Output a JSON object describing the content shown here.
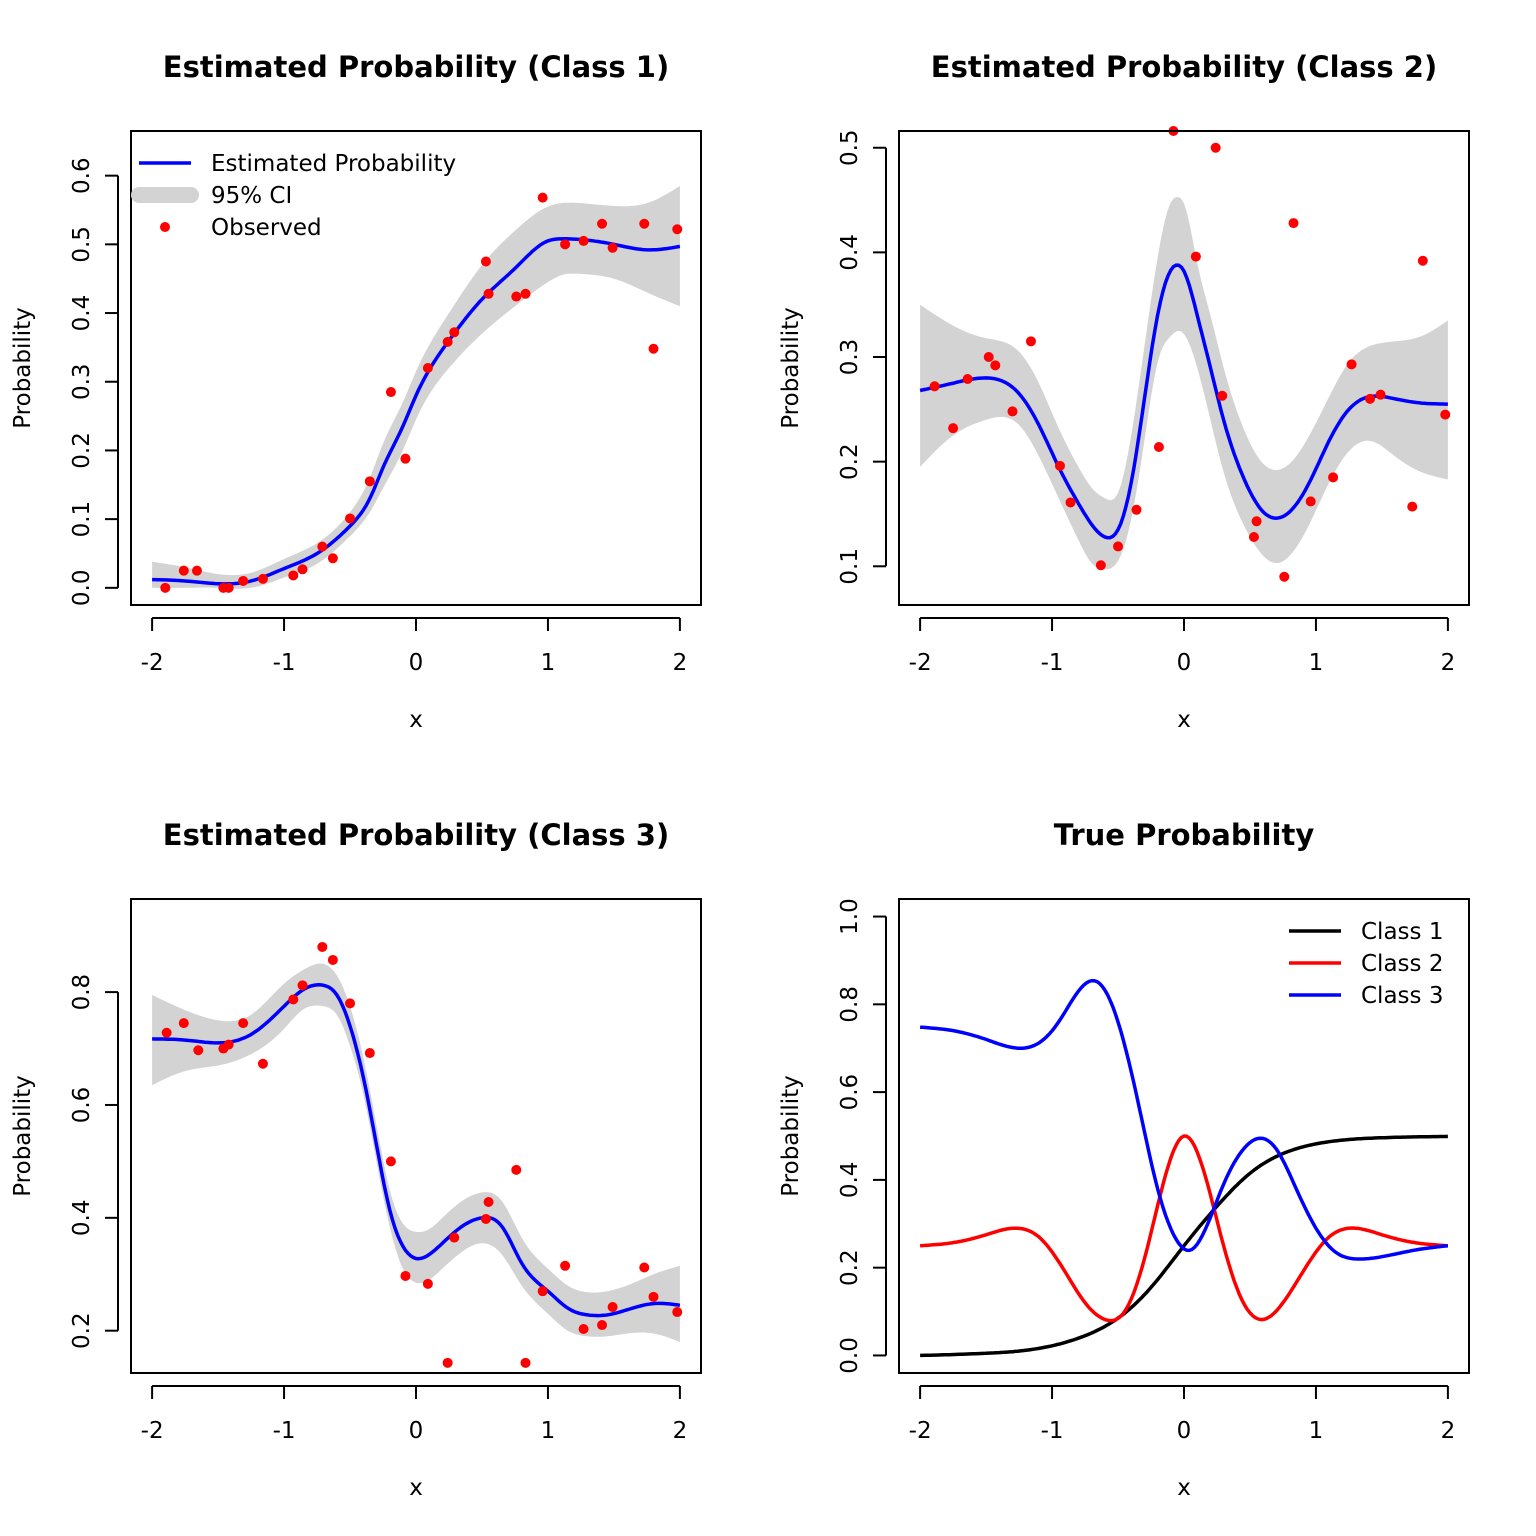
{
  "chart_data": [
    {
      "type": "line",
      "title": "Estimated Probability (Class 1)",
      "xlabel": "x",
      "ylabel": "Probability",
      "xlim": [
        -2.16,
        2.16
      ],
      "ylim": [
        -0.025,
        0.665
      ],
      "xticks": [
        -2,
        -1,
        0,
        1,
        2
      ],
      "yticks": [
        0.0,
        0.1,
        0.2,
        0.3,
        0.4,
        0.5,
        0.6
      ],
      "xtick_labels": [
        "-2",
        "-1",
        "0",
        "1",
        "2"
      ],
      "ytick_labels": [
        "0.0",
        "0.1",
        "0.2",
        "0.3",
        "0.4",
        "0.5",
        "0.6"
      ],
      "legend": {
        "position": "top-left",
        "entries": [
          {
            "label": "Estimated Probability",
            "kind": "line",
            "color": "#0000ff"
          },
          {
            "label": "95% CI",
            "kind": "band",
            "color": "#d3d3d3"
          },
          {
            "label": "Observed",
            "kind": "point",
            "color": "#ff0000"
          }
        ]
      },
      "series": [
        {
          "name": "Estimated Probability",
          "color": "#0000ff",
          "x": [
            -2.0,
            -1.75,
            -1.5,
            -1.25,
            -1.0,
            -0.75,
            -0.5,
            -0.35,
            -0.25,
            -0.1,
            0.0,
            0.25,
            0.5,
            0.75,
            1.0,
            1.1,
            1.25,
            1.5,
            1.75,
            2.0
          ],
          "y": [
            0.012,
            0.01,
            0.006,
            0.01,
            0.028,
            0.05,
            0.09,
            0.13,
            0.175,
            0.235,
            0.28,
            0.36,
            0.42,
            0.465,
            0.505,
            0.508,
            0.507,
            0.5,
            0.492,
            0.497
          ]
        }
      ],
      "band": {
        "name": "95% CI",
        "color": "#d3d3d3",
        "x": [
          -2.0,
          -1.75,
          -1.5,
          -1.25,
          -1.0,
          -0.75,
          -0.5,
          -0.35,
          -0.25,
          -0.1,
          0.0,
          0.25,
          0.5,
          0.75,
          1.0,
          1.1,
          1.25,
          1.5,
          1.75,
          2.0
        ],
        "lower": [
          0.0,
          0.0,
          0.0,
          0.0,
          0.015,
          0.035,
          0.075,
          0.11,
          0.145,
          0.2,
          0.245,
          0.32,
          0.37,
          0.41,
          0.445,
          0.455,
          0.457,
          0.45,
          0.43,
          0.41
        ],
        "upper": [
          0.038,
          0.03,
          0.02,
          0.022,
          0.042,
          0.065,
          0.11,
          0.16,
          0.21,
          0.27,
          0.315,
          0.4,
          0.47,
          0.52,
          0.555,
          0.56,
          0.56,
          0.556,
          0.56,
          0.585
        ]
      },
      "points": {
        "name": "Observed",
        "color": "#ff0000",
        "x": [
          -1.9,
          -1.76,
          -1.66,
          -1.46,
          -1.42,
          -1.31,
          -1.16,
          -0.93,
          -0.86,
          -0.71,
          -0.63,
          -0.5,
          -0.35,
          -0.19,
          -0.08,
          0.09,
          0.24,
          0.29,
          0.53,
          0.55,
          0.76,
          0.83,
          0.96,
          1.13,
          1.27,
          1.41,
          1.49,
          1.73,
          1.8,
          1.98
        ],
        "y": [
          0.0,
          0.025,
          0.025,
          0.0,
          0.0,
          0.01,
          0.013,
          0.018,
          0.027,
          0.06,
          0.043,
          0.101,
          0.155,
          0.285,
          0.188,
          0.32,
          0.358,
          0.372,
          0.475,
          0.428,
          0.424,
          0.428,
          0.568,
          0.5,
          0.505,
          0.53,
          0.495,
          0.53,
          0.348,
          0.522
        ]
      }
    },
    {
      "type": "line",
      "title": "Estimated Probability (Class 2)",
      "xlabel": "x",
      "ylabel": "Probability",
      "xlim": [
        -2.16,
        2.16
      ],
      "ylim": [
        0.063,
        0.516
      ],
      "xticks": [
        -2,
        -1,
        0,
        1,
        2
      ],
      "yticks": [
        0.1,
        0.2,
        0.3,
        0.4,
        0.5
      ],
      "xtick_labels": [
        "-2",
        "-1",
        "0",
        "1",
        "2"
      ],
      "ytick_labels": [
        "0.1",
        "0.2",
        "0.3",
        "0.4",
        "0.5"
      ],
      "series": [
        {
          "name": "Estimated Probability",
          "color": "#0000ff",
          "x": [
            -2.0,
            -1.75,
            -1.5,
            -1.25,
            -1.1,
            -0.95,
            -0.8,
            -0.7,
            -0.6,
            -0.5,
            -0.4,
            -0.3,
            -0.2,
            -0.1,
            -0.05,
            0.0,
            0.1,
            0.2,
            0.3,
            0.45,
            0.6,
            0.7,
            0.8,
            0.95,
            1.1,
            1.25,
            1.4,
            1.6,
            1.8,
            2.0
          ],
          "y": [
            0.268,
            0.275,
            0.28,
            0.265,
            0.235,
            0.195,
            0.16,
            0.14,
            0.128,
            0.135,
            0.18,
            0.26,
            0.34,
            0.383,
            0.388,
            0.382,
            0.34,
            0.29,
            0.24,
            0.185,
            0.152,
            0.146,
            0.152,
            0.18,
            0.22,
            0.25,
            0.262,
            0.26,
            0.256,
            0.255
          ]
        }
      ],
      "band": {
        "name": "95% CI",
        "color": "#d3d3d3",
        "x": [
          -2.0,
          -1.75,
          -1.5,
          -1.25,
          -1.1,
          -0.95,
          -0.8,
          -0.7,
          -0.6,
          -0.5,
          -0.4,
          -0.3,
          -0.2,
          -0.1,
          -0.05,
          0.0,
          0.1,
          0.2,
          0.3,
          0.45,
          0.6,
          0.7,
          0.8,
          0.95,
          1.1,
          1.25,
          1.4,
          1.6,
          1.8,
          2.0
        ],
        "lower": [
          0.195,
          0.225,
          0.24,
          0.235,
          0.205,
          0.165,
          0.125,
          0.103,
          0.097,
          0.105,
          0.145,
          0.22,
          0.295,
          0.32,
          0.325,
          0.322,
          0.29,
          0.24,
          0.19,
          0.14,
          0.11,
          0.103,
          0.11,
          0.14,
          0.18,
          0.21,
          0.22,
          0.205,
          0.19,
          0.183
        ],
        "upper": [
          0.35,
          0.33,
          0.318,
          0.305,
          0.275,
          0.232,
          0.195,
          0.175,
          0.165,
          0.17,
          0.225,
          0.31,
          0.395,
          0.448,
          0.453,
          0.447,
          0.39,
          0.34,
          0.29,
          0.232,
          0.198,
          0.192,
          0.198,
          0.225,
          0.262,
          0.295,
          0.31,
          0.315,
          0.32,
          0.335
        ]
      },
      "points": {
        "name": "Observed",
        "color": "#ff0000",
        "x": [
          -1.89,
          -1.75,
          -1.64,
          -1.48,
          -1.43,
          -1.3,
          -1.16,
          -0.94,
          -0.86,
          -0.63,
          -0.5,
          -0.36,
          -0.19,
          -0.08,
          0.09,
          0.24,
          0.29,
          0.53,
          0.55,
          0.76,
          0.83,
          0.96,
          1.13,
          1.27,
          1.41,
          1.49,
          1.73,
          1.81,
          1.98
        ],
        "y": [
          0.272,
          0.232,
          0.279,
          0.3,
          0.292,
          0.248,
          0.315,
          0.196,
          0.161,
          0.101,
          0.119,
          0.154,
          0.214,
          0.516,
          0.396,
          0.5,
          0.263,
          0.128,
          0.143,
          0.09,
          0.428,
          0.162,
          0.185,
          0.293,
          0.26,
          0.264,
          0.157,
          0.392,
          0.245
        ]
      }
    },
    {
      "type": "line",
      "title": "Estimated Probability (Class 3)",
      "xlabel": "x",
      "ylabel": "Probability",
      "xlim": [
        -2.16,
        2.16
      ],
      "ylim": [
        0.125,
        0.965
      ],
      "xticks": [
        -2,
        -1,
        0,
        1,
        2
      ],
      "yticks": [
        0.2,
        0.4,
        0.6,
        0.8
      ],
      "xtick_labels": [
        "-2",
        "-1",
        "0",
        "1",
        "2"
      ],
      "ytick_labels": [
        "0.2",
        "0.4",
        "0.6",
        "0.8"
      ],
      "series": [
        {
          "name": "Estimated Probability",
          "color": "#0000ff",
          "x": [
            -2.0,
            -1.75,
            -1.5,
            -1.25,
            -1.0,
            -0.85,
            -0.7,
            -0.6,
            -0.5,
            -0.4,
            -0.3,
            -0.2,
            -0.1,
            0.0,
            0.1,
            0.2,
            0.35,
            0.5,
            0.65,
            0.8,
            1.0,
            1.15,
            1.3,
            1.45,
            1.6,
            1.8,
            2.0
          ],
          "y": [
            0.717,
            0.715,
            0.71,
            0.725,
            0.775,
            0.805,
            0.812,
            0.795,
            0.74,
            0.65,
            0.53,
            0.415,
            0.35,
            0.328,
            0.335,
            0.355,
            0.385,
            0.4,
            0.385,
            0.32,
            0.27,
            0.24,
            0.228,
            0.228,
            0.237,
            0.248,
            0.245
          ]
        }
      ],
      "band": {
        "name": "95% CI",
        "color": "#d3d3d3",
        "x": [
          -2.0,
          -1.75,
          -1.5,
          -1.25,
          -1.0,
          -0.85,
          -0.7,
          -0.6,
          -0.5,
          -0.4,
          -0.3,
          -0.2,
          -0.1,
          0.0,
          0.1,
          0.2,
          0.35,
          0.5,
          0.65,
          0.8,
          1.0,
          1.15,
          1.3,
          1.45,
          1.6,
          1.8,
          2.0
        ],
        "lower": [
          0.635,
          0.66,
          0.67,
          0.69,
          0.735,
          0.77,
          0.775,
          0.76,
          0.705,
          0.62,
          0.5,
          0.385,
          0.31,
          0.285,
          0.29,
          0.31,
          0.34,
          0.355,
          0.335,
          0.28,
          0.23,
          0.2,
          0.19,
          0.19,
          0.195,
          0.195,
          0.18
        ],
        "upper": [
          0.795,
          0.768,
          0.75,
          0.76,
          0.815,
          0.84,
          0.85,
          0.83,
          0.775,
          0.685,
          0.565,
          0.45,
          0.39,
          0.375,
          0.38,
          0.4,
          0.43,
          0.445,
          0.43,
          0.365,
          0.31,
          0.28,
          0.268,
          0.27,
          0.28,
          0.3,
          0.315
        ]
      },
      "points": {
        "name": "Observed",
        "color": "#ff0000",
        "x": [
          -1.89,
          -1.76,
          -1.65,
          -1.46,
          -1.42,
          -1.31,
          -1.16,
          -0.93,
          -0.86,
          -0.71,
          -0.63,
          -0.5,
          -0.35,
          -0.19,
          -0.08,
          0.09,
          0.24,
          0.29,
          0.53,
          0.55,
          0.76,
          0.83,
          0.96,
          1.13,
          1.27,
          1.41,
          1.49,
          1.73,
          1.8,
          1.98
        ],
        "y": [
          0.728,
          0.745,
          0.697,
          0.7,
          0.707,
          0.745,
          0.673,
          0.787,
          0.812,
          0.88,
          0.857,
          0.78,
          0.692,
          0.5,
          0.297,
          0.283,
          0.143,
          0.365,
          0.398,
          0.428,
          0.485,
          0.143,
          0.27,
          0.315,
          0.203,
          0.21,
          0.242,
          0.312,
          0.26,
          0.233
        ]
      }
    },
    {
      "type": "line",
      "title": "True Probability",
      "xlabel": "x",
      "ylabel": "Probability",
      "xlim": [
        -2.16,
        2.16
      ],
      "ylim": [
        -0.04,
        1.04
      ],
      "xticks": [
        -2,
        -1,
        0,
        1,
        2
      ],
      "yticks": [
        0.0,
        0.2,
        0.4,
        0.6,
        0.8,
        1.0
      ],
      "xtick_labels": [
        "-2",
        "-1",
        "0",
        "1",
        "2"
      ],
      "ytick_labels": [
        "0.0",
        "0.2",
        "0.4",
        "0.6",
        "0.8",
        "1.0"
      ],
      "legend": {
        "position": "top-right",
        "entries": [
          {
            "label": "Class 1",
            "kind": "line",
            "color": "#000000"
          },
          {
            "label": "Class 2",
            "kind": "line",
            "color": "#ff0000"
          },
          {
            "label": "Class 3",
            "kind": "line",
            "color": "#0000ff"
          }
        ]
      },
      "series": [
        {
          "name": "Class 1",
          "color": "#000000",
          "x": [
            -2.0,
            -1.75,
            -1.5,
            -1.25,
            -1.0,
            -0.75,
            -0.5,
            -0.25,
            0.0,
            0.25,
            0.5,
            0.75,
            1.0,
            1.25,
            1.5,
            1.75,
            2.0
          ],
          "y": [
            0.0,
            0.002,
            0.005,
            0.01,
            0.022,
            0.045,
            0.085,
            0.155,
            0.25,
            0.34,
            0.415,
            0.46,
            0.482,
            0.492,
            0.496,
            0.498,
            0.499
          ]
        },
        {
          "name": "Class 2",
          "color": "#ff0000",
          "x": [
            -2.0,
            -1.75,
            -1.5,
            -1.27,
            -1.1,
            -0.9,
            -0.75,
            -0.6,
            -0.45,
            -0.3,
            -0.15,
            0.0,
            0.15,
            0.3,
            0.45,
            0.6,
            0.75,
            0.9,
            1.1,
            1.3,
            1.5,
            1.75,
            2.0
          ],
          "y": [
            0.25,
            0.257,
            0.275,
            0.29,
            0.27,
            0.19,
            0.12,
            0.082,
            0.1,
            0.22,
            0.4,
            0.5,
            0.42,
            0.25,
            0.12,
            0.082,
            0.12,
            0.19,
            0.27,
            0.29,
            0.275,
            0.257,
            0.25
          ]
        },
        {
          "name": "Class 3",
          "color": "#0000ff",
          "x": [
            -2.0,
            -1.75,
            -1.5,
            -1.25,
            -1.1,
            -0.95,
            -0.8,
            -0.65,
            -0.5,
            -0.35,
            -0.2,
            -0.05,
            0.05,
            0.15,
            0.3,
            0.45,
            0.58,
            0.7,
            0.85,
            1.0,
            1.15,
            1.3,
            1.5,
            1.75,
            2.0
          ],
          "y": [
            0.748,
            0.74,
            0.72,
            0.7,
            0.712,
            0.76,
            0.83,
            0.85,
            0.76,
            0.58,
            0.38,
            0.26,
            0.24,
            0.28,
            0.39,
            0.47,
            0.495,
            0.47,
            0.38,
            0.29,
            0.235,
            0.22,
            0.225,
            0.24,
            0.25
          ]
        }
      ]
    }
  ]
}
